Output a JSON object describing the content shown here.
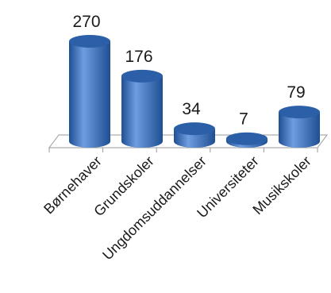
{
  "chart_data": {
    "type": "bar",
    "style": "3d-cylinder",
    "categories": [
      "Børnehaver",
      "Grundskoler",
      "Ungdomsuddannelser",
      "Universiteter",
      "Musikskoler"
    ],
    "values": [
      270,
      176,
      34,
      7,
      79
    ],
    "title": "",
    "xlabel": "",
    "ylabel": "",
    "ylim": [
      0,
      270
    ],
    "grid": false,
    "legend": "none",
    "data_labels": true,
    "bar_color": "#3f76c2",
    "bar_dark_color": "#1f4f93",
    "bar_light_color": "#6e9ee0",
    "top_color": "#2b5fa8",
    "axis_color": "#9a9a9a"
  }
}
